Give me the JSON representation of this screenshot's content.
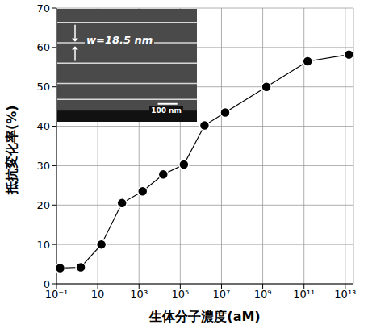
{
  "chart_data": {
    "type": "line",
    "x_label": "生体分子濃度(aM)",
    "y_label": "抵抗変化率(%)",
    "x": [
      0.15,
      1.5,
      15,
      150,
      1500,
      15000,
      150000,
      1500000,
      15000000,
      1500000000,
      150000000000,
      15000000000000
    ],
    "values": [
      4,
      4.2,
      10,
      20.5,
      23.5,
      27.8,
      30.3,
      40.2,
      43.5,
      50,
      56.5,
      58.2
    ],
    "color": "#000000",
    "marker": "circle",
    "log": "x",
    "grid": true,
    "xlim": [
      0.1,
      25000000000000
    ],
    "ylim": [
      0,
      70
    ],
    "xticks": [
      {
        "value": 0.1,
        "label": "10⁻¹"
      },
      10,
      {
        "value": 1000,
        "label": "10³"
      },
      {
        "value": 100000,
        "label": "10⁵"
      },
      {
        "value": 10000000,
        "label": "10⁷"
      },
      {
        "value": 1000000000,
        "label": "10⁹"
      },
      {
        "value": 100000000000,
        "label": "10¹¹"
      },
      {
        "value": 10000000000000,
        "label": "10¹³"
      }
    ],
    "yticks": [
      0,
      10,
      20,
      30,
      40,
      50,
      60,
      70
    ],
    "annotations": [
      "w=18.5 nm",
      "100 nm"
    ]
  }
}
